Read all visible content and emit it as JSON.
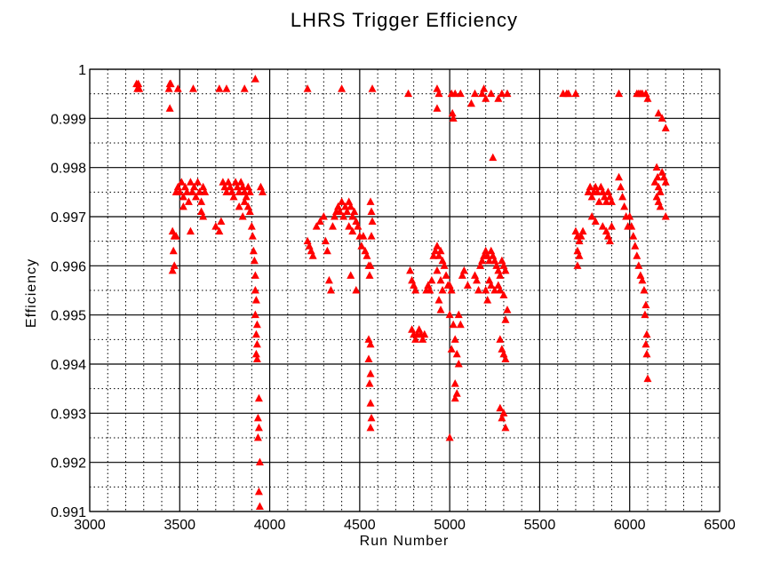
{
  "chart_data": {
    "type": "scatter",
    "title": "LHRS Trigger Efficiency",
    "xlabel": "Run Number",
    "ylabel": "Efficiency",
    "xlim": [
      3000,
      6500
    ],
    "ylim": [
      0.991,
      1.0
    ],
    "xticks": [
      3000,
      3500,
      4000,
      4500,
      5000,
      5500,
      6000,
      6500
    ],
    "xtick_labels": [
      "3000",
      "3500",
      "4000",
      "4500",
      "5000",
      "5500",
      "6000",
      "6500"
    ],
    "yticks": [
      0.991,
      0.992,
      0.993,
      0.994,
      0.995,
      0.996,
      0.997,
      0.998,
      0.999,
      1.0
    ],
    "ytick_labels": [
      "0.991",
      "0.992",
      "0.993",
      "0.994",
      "0.995",
      "0.996",
      "0.997",
      "0.998",
      "0.999",
      "1"
    ],
    "grid": true,
    "marker": "triangle",
    "color": "#ff0000",
    "points": [
      [
        3260,
        0.9997
      ],
      [
        3265,
        0.9996
      ],
      [
        3270,
        0.9997
      ],
      [
        3275,
        0.9996
      ],
      [
        3440,
        0.9996
      ],
      [
        3445,
        0.9997
      ],
      [
        3450,
        0.9997
      ],
      [
        3445,
        0.9992
      ],
      [
        3490,
        0.9996
      ],
      [
        3575,
        0.9996
      ],
      [
        3720,
        0.9996
      ],
      [
        3760,
        0.9996
      ],
      [
        3860,
        0.9996
      ],
      [
        3920,
        0.9998
      ],
      [
        4210,
        0.9996
      ],
      [
        4400,
        0.9996
      ],
      [
        4570,
        0.9996
      ],
      [
        4770,
        0.9995
      ],
      [
        4930,
        0.9996
      ],
      [
        4940,
        0.9995
      ],
      [
        4930,
        0.9992
      ],
      [
        5010,
        0.9995
      ],
      [
        5030,
        0.9995
      ],
      [
        5015,
        0.9991
      ],
      [
        5020,
        0.999
      ],
      [
        5060,
        0.9995
      ],
      [
        5120,
        0.9993
      ],
      [
        5140,
        0.9995
      ],
      [
        5180,
        0.9995
      ],
      [
        5190,
        0.9996
      ],
      [
        5200,
        0.9994
      ],
      [
        5230,
        0.9995
      ],
      [
        5270,
        0.9994
      ],
      [
        5290,
        0.9995
      ],
      [
        5320,
        0.9995
      ],
      [
        5240,
        0.9982
      ],
      [
        5630,
        0.9995
      ],
      [
        5650,
        0.9995
      ],
      [
        5660,
        0.9995
      ],
      [
        5700,
        0.9995
      ],
      [
        5940,
        0.9995
      ],
      [
        6040,
        0.9995
      ],
      [
        6050,
        0.9995
      ],
      [
        6060,
        0.9995
      ],
      [
        6070,
        0.9995
      ],
      [
        6090,
        0.9995
      ],
      [
        6100,
        0.9994
      ],
      [
        6160,
        0.9991
      ],
      [
        6180,
        0.999
      ],
      [
        6200,
        0.9988
      ],
      [
        3460,
        0.9967
      ],
      [
        3470,
        0.9966
      ],
      [
        3465,
        0.9963
      ],
      [
        3470,
        0.996
      ],
      [
        3460,
        0.9959
      ],
      [
        3480,
        0.9966
      ],
      [
        3480,
        0.9975
      ],
      [
        3490,
        0.9976
      ],
      [
        3500,
        0.9975
      ],
      [
        3510,
        0.9977
      ],
      [
        3520,
        0.9974
      ],
      [
        3530,
        0.9976
      ],
      [
        3540,
        0.9975
      ],
      [
        3550,
        0.9973
      ],
      [
        3560,
        0.9977
      ],
      [
        3570,
        0.9975
      ],
      [
        3580,
        0.9976
      ],
      [
        3590,
        0.9974
      ],
      [
        3600,
        0.9977
      ],
      [
        3610,
        0.9975
      ],
      [
        3620,
        0.9973
      ],
      [
        3630,
        0.9976
      ],
      [
        3640,
        0.9975
      ],
      [
        3620,
        0.9971
      ],
      [
        3630,
        0.997
      ],
      [
        3560,
        0.9967
      ],
      [
        3520,
        0.9972
      ],
      [
        3700,
        0.9968
      ],
      [
        3720,
        0.9967
      ],
      [
        3730,
        0.9969
      ],
      [
        3740,
        0.9977
      ],
      [
        3750,
        0.9976
      ],
      [
        3760,
        0.9975
      ],
      [
        3770,
        0.9977
      ],
      [
        3780,
        0.9976
      ],
      [
        3790,
        0.9975
      ],
      [
        3800,
        0.9974
      ],
      [
        3810,
        0.9977
      ],
      [
        3820,
        0.9976
      ],
      [
        3830,
        0.9975
      ],
      [
        3840,
        0.9977
      ],
      [
        3850,
        0.9976
      ],
      [
        3860,
        0.9975
      ],
      [
        3870,
        0.9974
      ],
      [
        3880,
        0.9976
      ],
      [
        3890,
        0.9975
      ],
      [
        3880,
        0.9972
      ],
      [
        3890,
        0.9971
      ],
      [
        3860,
        0.9973
      ],
      [
        3850,
        0.997
      ],
      [
        3830,
        0.9972
      ],
      [
        3900,
        0.9968
      ],
      [
        3905,
        0.9966
      ],
      [
        3910,
        0.9963
      ],
      [
        3915,
        0.9961
      ],
      [
        3920,
        0.9958
      ],
      [
        3920,
        0.9955
      ],
      [
        3925,
        0.9953
      ],
      [
        3920,
        0.995
      ],
      [
        3930,
        0.9948
      ],
      [
        3925,
        0.9946
      ],
      [
        3930,
        0.9944
      ],
      [
        3925,
        0.9942
      ],
      [
        3930,
        0.9941
      ],
      [
        3940,
        0.9933
      ],
      [
        3935,
        0.9929
      ],
      [
        3940,
        0.9927
      ],
      [
        3935,
        0.9925
      ],
      [
        3945,
        0.992
      ],
      [
        3940,
        0.9914
      ],
      [
        3945,
        0.9911
      ],
      [
        3950,
        0.9976
      ],
      [
        3960,
        0.9975
      ],
      [
        4210,
        0.9965
      ],
      [
        4220,
        0.9964
      ],
      [
        4230,
        0.9963
      ],
      [
        4240,
        0.9962
      ],
      [
        4260,
        0.9968
      ],
      [
        4280,
        0.9969
      ],
      [
        4300,
        0.997
      ],
      [
        4310,
        0.9965
      ],
      [
        4320,
        0.9963
      ],
      [
        4330,
        0.9957
      ],
      [
        4340,
        0.9955
      ],
      [
        4350,
        0.9968
      ],
      [
        4360,
        0.997
      ],
      [
        4370,
        0.9971
      ],
      [
        4380,
        0.9972
      ],
      [
        4390,
        0.9971
      ],
      [
        4400,
        0.9973
      ],
      [
        4410,
        0.997
      ],
      [
        4420,
        0.9972
      ],
      [
        4430,
        0.9971
      ],
      [
        4440,
        0.9973
      ],
      [
        4450,
        0.9972
      ],
      [
        4460,
        0.997
      ],
      [
        4470,
        0.9971
      ],
      [
        4480,
        0.9969
      ],
      [
        4490,
        0.9968
      ],
      [
        4500,
        0.9966
      ],
      [
        4510,
        0.9964
      ],
      [
        4520,
        0.9966
      ],
      [
        4530,
        0.9963
      ],
      [
        4540,
        0.9962
      ],
      [
        4550,
        0.996
      ],
      [
        4440,
        0.9968
      ],
      [
        4460,
        0.9967
      ],
      [
        4450,
        0.9958
      ],
      [
        4480,
        0.9955
      ],
      [
        4560,
        0.9973
      ],
      [
        4565,
        0.9971
      ],
      [
        4570,
        0.9969
      ],
      [
        4565,
        0.9966
      ],
      [
        4560,
        0.996
      ],
      [
        4555,
        0.9958
      ],
      [
        4550,
        0.9945
      ],
      [
        4560,
        0.9944
      ],
      [
        4550,
        0.9941
      ],
      [
        4560,
        0.9938
      ],
      [
        4555,
        0.9936
      ],
      [
        4560,
        0.9932
      ],
      [
        4565,
        0.9929
      ],
      [
        4560,
        0.9927
      ],
      [
        4780,
        0.9959
      ],
      [
        4790,
        0.9957
      ],
      [
        4800,
        0.9956
      ],
      [
        4810,
        0.9955
      ],
      [
        4790,
        0.9947
      ],
      [
        4800,
        0.9946
      ],
      [
        4810,
        0.9945
      ],
      [
        4820,
        0.9946
      ],
      [
        4830,
        0.9947
      ],
      [
        4840,
        0.9946
      ],
      [
        4850,
        0.9945
      ],
      [
        4860,
        0.9946
      ],
      [
        4870,
        0.9955
      ],
      [
        4880,
        0.9956
      ],
      [
        4890,
        0.9955
      ],
      [
        4900,
        0.9957
      ],
      [
        4910,
        0.9962
      ],
      [
        4920,
        0.9963
      ],
      [
        4930,
        0.9964
      ],
      [
        4940,
        0.9962
      ],
      [
        4950,
        0.9963
      ],
      [
        4960,
        0.9961
      ],
      [
        4970,
        0.996
      ],
      [
        4980,
        0.9958
      ],
      [
        4990,
        0.9956
      ],
      [
        4930,
        0.9959
      ],
      [
        4950,
        0.9957
      ],
      [
        4960,
        0.9955
      ],
      [
        4940,
        0.9953
      ],
      [
        4950,
        0.9951
      ],
      [
        5000,
        0.9956
      ],
      [
        5010,
        0.9955
      ],
      [
        5000,
        0.995
      ],
      [
        5020,
        0.9948
      ],
      [
        5030,
        0.9945
      ],
      [
        5010,
        0.9943
      ],
      [
        5040,
        0.9942
      ],
      [
        5030,
        0.9936
      ],
      [
        5040,
        0.9934
      ],
      [
        5030,
        0.9933
      ],
      [
        5050,
        0.995
      ],
      [
        5060,
        0.9948
      ],
      [
        5050,
        0.994
      ],
      [
        5000,
        0.9925
      ],
      [
        5070,
        0.9958
      ],
      [
        5080,
        0.9959
      ],
      [
        5100,
        0.9956
      ],
      [
        5140,
        0.9958
      ],
      [
        5150,
        0.9957
      ],
      [
        5160,
        0.9955
      ],
      [
        5170,
        0.996
      ],
      [
        5180,
        0.9961
      ],
      [
        5190,
        0.9962
      ],
      [
        5200,
        0.9963
      ],
      [
        5210,
        0.9962
      ],
      [
        5220,
        0.9961
      ],
      [
        5230,
        0.9963
      ],
      [
        5240,
        0.9962
      ],
      [
        5250,
        0.9961
      ],
      [
        5260,
        0.996
      ],
      [
        5270,
        0.9959
      ],
      [
        5280,
        0.9958
      ],
      [
        5290,
        0.9961
      ],
      [
        5300,
        0.996
      ],
      [
        5310,
        0.9959
      ],
      [
        5200,
        0.9955
      ],
      [
        5210,
        0.9953
      ],
      [
        5220,
        0.9957
      ],
      [
        5230,
        0.9956
      ],
      [
        5250,
        0.9955
      ],
      [
        5270,
        0.9956
      ],
      [
        5280,
        0.9955
      ],
      [
        5300,
        0.9954
      ],
      [
        5280,
        0.9945
      ],
      [
        5290,
        0.9943
      ],
      [
        5300,
        0.9942
      ],
      [
        5310,
        0.9941
      ],
      [
        5280,
        0.9931
      ],
      [
        5290,
        0.9929
      ],
      [
        5300,
        0.993
      ],
      [
        5310,
        0.9927
      ],
      [
        5320,
        0.9951
      ],
      [
        5310,
        0.9949
      ],
      [
        5700,
        0.9967
      ],
      [
        5710,
        0.9966
      ],
      [
        5720,
        0.9965
      ],
      [
        5730,
        0.9966
      ],
      [
        5740,
        0.9967
      ],
      [
        5710,
        0.9963
      ],
      [
        5720,
        0.9962
      ],
      [
        5710,
        0.996
      ],
      [
        5770,
        0.9975
      ],
      [
        5780,
        0.9976
      ],
      [
        5790,
        0.9974
      ],
      [
        5800,
        0.9975
      ],
      [
        5810,
        0.9976
      ],
      [
        5820,
        0.9975
      ],
      [
        5830,
        0.9973
      ],
      [
        5840,
        0.9976
      ],
      [
        5850,
        0.9975
      ],
      [
        5860,
        0.9974
      ],
      [
        5870,
        0.9973
      ],
      [
        5880,
        0.9975
      ],
      [
        5890,
        0.9974
      ],
      [
        5900,
        0.9973
      ],
      [
        5790,
        0.997
      ],
      [
        5810,
        0.9969
      ],
      [
        5850,
        0.9968
      ],
      [
        5870,
        0.9967
      ],
      [
        5880,
        0.9966
      ],
      [
        5890,
        0.9965
      ],
      [
        5900,
        0.9968
      ],
      [
        5940,
        0.9978
      ],
      [
        5950,
        0.9976
      ],
      [
        5960,
        0.9974
      ],
      [
        5970,
        0.9972
      ],
      [
        5980,
        0.997
      ],
      [
        5990,
        0.9968
      ],
      [
        6000,
        0.997
      ],
      [
        6010,
        0.9968
      ],
      [
        6020,
        0.9966
      ],
      [
        6030,
        0.9964
      ],
      [
        6040,
        0.9962
      ],
      [
        6050,
        0.996
      ],
      [
        6060,
        0.9958
      ],
      [
        6070,
        0.9957
      ],
      [
        6080,
        0.9955
      ],
      [
        6090,
        0.9952
      ],
      [
        6085,
        0.995
      ],
      [
        6095,
        0.9946
      ],
      [
        6090,
        0.9944
      ],
      [
        6095,
        0.9942
      ],
      [
        6100,
        0.9937
      ],
      [
        6140,
        0.9977
      ],
      [
        6150,
        0.998
      ],
      [
        6155,
        0.9978
      ],
      [
        6160,
        0.9976
      ],
      [
        6170,
        0.9975
      ],
      [
        6180,
        0.9979
      ],
      [
        6190,
        0.9978
      ],
      [
        6200,
        0.9977
      ],
      [
        6150,
        0.9974
      ],
      [
        6160,
        0.9973
      ],
      [
        6170,
        0.9972
      ],
      [
        6200,
        0.997
      ]
    ]
  }
}
